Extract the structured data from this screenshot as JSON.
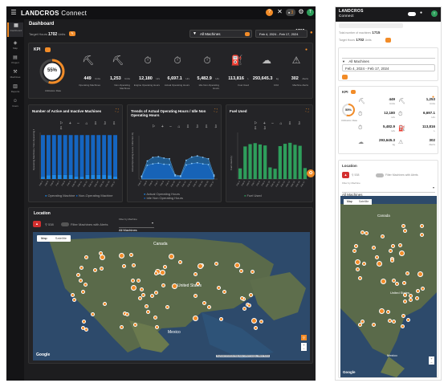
{
  "app": {
    "brand": "LANDCROS",
    "brand_sub": "Connect",
    "notif_count": "3"
  },
  "sidebar": {
    "items": [
      {
        "label": "Dashboard",
        "icon": "dashboard-icon"
      },
      {
        "label": "Map",
        "icon": "map-icon"
      },
      {
        "label": "Project",
        "icon": "project-icon"
      },
      {
        "label": "Machines",
        "icon": "machines-icon"
      },
      {
        "label": "Reports",
        "icon": "reports-icon"
      },
      {
        "label": "Users",
        "icon": "users-icon"
      }
    ]
  },
  "dashboard": {
    "title": "Dashboard",
    "target_hours_label": "Target Hours",
    "target_hours_value": "1702",
    "target_hours_unit": "Units",
    "machine_filter": "All Machines",
    "total_machines_label": "Total number of machines",
    "total_machines_value": "1715",
    "date_range": "Feb 4, 2024 - Feb 17, 2024"
  },
  "kpi": {
    "title": "KPI",
    "utilization_pct": "55%",
    "utilization_label": "Utilization Rate",
    "utilization_fraction": 0.55,
    "cards": [
      {
        "value": "449",
        "unit": "Units",
        "label": "Operating Machines"
      },
      {
        "value": "1,253",
        "unit": "Units",
        "label": "Non-Operating Machines"
      },
      {
        "value": "12,180",
        "unit": "Hrs",
        "label": "Engine Operating Hours"
      },
      {
        "value": "6,697.1",
        "unit": "Hrs",
        "label": "Actual Operating Hours"
      },
      {
        "value": "5,482.9",
        "unit": "Hrs",
        "label": "Idle Non-Operating Hours"
      },
      {
        "value": "113,816",
        "unit": "L",
        "label": "Fuel Used"
      },
      {
        "value": "293,645.3",
        "unit": "kg",
        "label": "CO2"
      },
      {
        "value": "302",
        "unit": "Alerts",
        "label": "Machine Alerts"
      }
    ]
  },
  "charts": {
    "active_inactive": {
      "title": "Number of Active and Inactive Machines",
      "ylabel": "Operating Machines / Non-Operating Machines",
      "legend": [
        "Operating Machine",
        "Non-Operating Machine"
      ]
    },
    "operating_hours": {
      "title": "Trends of Actual Operating Hours / Idle Non Operating Hours",
      "ylabel": "Actual Operating Hours / Idle Non Operating",
      "legend": [
        "Actual Operating Hours",
        "Idle Non Operating Hours"
      ]
    },
    "fuel": {
      "title": "Fuel Used",
      "ylabel": "Fuel Used (L)",
      "legend": [
        "Fuel Used"
      ]
    }
  },
  "chart_data": [
    {
      "type": "bar",
      "title": "Number of Active and Inactive Machines",
      "categories": [
        "Feb 4",
        "Feb 5",
        "Feb 6",
        "Feb 7",
        "Feb 8",
        "Feb 9",
        "Feb 10",
        "Feb 11",
        "Feb 12",
        "Feb 13",
        "Feb 14",
        "Feb 15",
        "Feb 16",
        "Feb 17"
      ],
      "series": [
        {
          "name": "Operating Machine",
          "values": [
            90,
            150,
            160,
            165,
            160,
            155,
            95,
            90,
            160,
            165,
            160,
            155,
            150,
            95
          ]
        },
        {
          "name": "Non-Operating Machine",
          "values": [
            1610,
            1550,
            1540,
            1535,
            1540,
            1545,
            1605,
            1610,
            1540,
            1535,
            1540,
            1545,
            1550,
            1605
          ]
        }
      ],
      "ylim": [
        0,
        1800
      ],
      "stacked": true
    },
    {
      "type": "area",
      "title": "Trends of Actual Operating Hours / Idle Non Operating Hours",
      "categories": [
        "Feb 4",
        "Feb 5",
        "Feb 6",
        "Feb 7",
        "Feb 8",
        "Feb 9",
        "Feb 10",
        "Feb 11",
        "Feb 12",
        "Feb 13",
        "Feb 14",
        "Feb 15",
        "Feb 16",
        "Feb 17"
      ],
      "series": [
        {
          "name": "Actual Operating Hours",
          "values": [
            80,
            500,
            600,
            620,
            580,
            560,
            120,
            90,
            520,
            610,
            640,
            600,
            560,
            110
          ]
        },
        {
          "name": "Idle Non Operating Hours",
          "values": [
            60,
            380,
            420,
            440,
            410,
            400,
            90,
            70,
            390,
            430,
            450,
            420,
            400,
            80
          ]
        }
      ],
      "ylim": [
        0,
        1200
      ]
    },
    {
      "type": "bar",
      "title": "Fuel Used",
      "categories": [
        "Feb 4",
        "Feb 5",
        "Feb 6",
        "Feb 7",
        "Feb 8",
        "Feb 9",
        "Feb 10",
        "Feb 11",
        "Feb 12",
        "Feb 13",
        "Feb 14",
        "Feb 15",
        "Feb 16",
        "Feb 17"
      ],
      "series": [
        {
          "name": "Fuel Used",
          "values": [
            3200,
            9800,
            10500,
            10800,
            10400,
            10100,
            3500,
            3100,
            9900,
            10600,
            10900,
            10300,
            10000,
            3300
          ]
        }
      ],
      "ylim": [
        0,
        14000
      ]
    }
  ],
  "location": {
    "title": "Location",
    "count": "538",
    "filter_alerts_label": "Filter Machines with Alerts",
    "filter_by_label": "Filter by Machine",
    "machine_select": "All Machines",
    "map_tab": "Map",
    "satellite_tab": "Satellite",
    "map_labels": [
      "Canada",
      "United States",
      "Mexico"
    ],
    "google": "Google",
    "attribution": "Keyboard shortcuts  Map data ©2024 Google, INEGI  Terms"
  },
  "mobile": {
    "brand": "LANDCROS",
    "brand_sub": "Connect",
    "total_machines_label": "Total number of machines",
    "total_machines_value": "1715",
    "target_hours_label": "Target Hours",
    "target_hours_value": "1702",
    "target_hours_unit": "Units",
    "machine_filter": "All Machines",
    "date_range": "Feb 4, 2024 - Feb 17, 2024",
    "kpi_title": "KPI",
    "utilization_pct": "55%",
    "utilization_label": "Utilization Rate",
    "kpi_cards": [
      {
        "value": "449",
        "unit": "Units"
      },
      {
        "value": "1,253",
        "unit": "Units"
      },
      {
        "value": "12,180",
        "unit": "Hrs"
      },
      {
        "value": "6,697.1",
        "unit": "Hrs"
      },
      {
        "value": "5,482.9",
        "unit": "Hrs"
      },
      {
        "value": "113,816",
        "unit": "L"
      },
      {
        "value": "293,645.3",
        "unit": "kg"
      },
      {
        "value": "302",
        "unit": "Alerts"
      }
    ],
    "location_title": "Location",
    "location_count": "538",
    "filter_alerts_label": "Filter Machines with Alerts",
    "filter_by_label": "Filter by Machine",
    "machine_select": "All Machines",
    "map_tab": "Map",
    "satellite_tab": "Satellite",
    "map_labels": [
      "Canada",
      "United States",
      "Mexico"
    ],
    "google": "Google"
  },
  "colors": {
    "accent": "#f28c28",
    "operating": "#1e88e5",
    "non_operating": "#1565c0",
    "fuel": "#2e9e5b",
    "dark_bg": "#1d1d1f"
  }
}
